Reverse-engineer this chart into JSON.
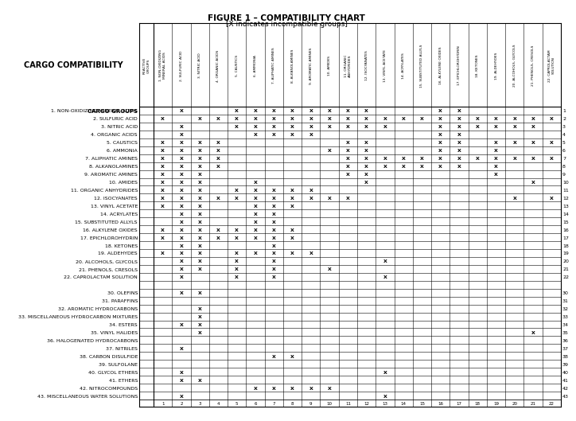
{
  "title_line1": "FIGURE 1 – COMPATIBILITY CHART",
  "title_line2": "[X indicates incompatible groups]",
  "col_header_texts": [
    "REACTIVE\nGROUPS",
    "1. NON-OXIDIZING\nMINERAL ACIDS",
    "2. SULFURIC ACID",
    "3. NITRIC ACID",
    "4. ORGANIC ACIDS",
    "5. CAUSTICS",
    "6. AMMONIA",
    "7. ALIPHATIC AMINES",
    "8. ALKANOLAMINES",
    "9. AROMATIC AMINES",
    "10. AMIDES",
    "11. ORGANIC\nANHYDRIDES",
    "12. ISOCYANATES",
    "13. VINYL ACETATE",
    "14. ACRYLATES",
    "15. SUBSTITUTED ALLYLS",
    "16. ALKYLENE OXIDES",
    "17. EPICHLOROHYDRIN",
    "18. KETONES",
    "19. ALDEHYDES",
    "20. ALCOHOLS, GLYCOLS",
    "21. PHENOLS, CRESOLS",
    "22. CAPROLACTAM\nSOLUTION"
  ],
  "cargo_groups": [
    "1. NON-OXIDIZING MINERAL ACIDS",
    "2. SULFURIC ACID",
    "3. NITRIC ACID",
    "4. ORGANIC ACIDS",
    "5. CAUSTICS",
    "6. AMMONIA",
    "7. ALIPHATIC AMINES",
    "8. ALKANOLAMINES",
    "9. AROMATIC AMINES",
    "10. AMIDES",
    "11. ORGANIC ANHYDRIDES",
    "12. ISOCYANATES",
    "13. VINYL ACETATE",
    "14. ACRYLATES",
    "15. SUBSTITUTED ALLYLS",
    "16. ALKYLENE OXIDES",
    "17. EPICHLOROHYDRIN",
    "18. KETONES",
    "19. ALDEHYDES",
    "20. ALCOHOLS, GLYCOLS",
    "21. PHENOLS, CRESOLS",
    "22. CAPROLACTAM SOLUTION",
    "",
    "30. OLEFINS",
    "31. PARAFFINS",
    "32. AROMATIC HYDROCARBONS",
    "33. MISCELLANEOUS HYDROCARBON MIXTURES",
    "34. ESTERS",
    "35. VINYL HALIDES",
    "36. HALOGENATED HYDROCARBONS",
    "37. NITRILES",
    "38. CARBON DISULFIDE",
    "39. SULFOLANE",
    "40. GLYCOL ETHERS",
    "41. ETHERS",
    "42. NITROCOMPOUNDS",
    "43. MISCELLANEOUS WATER SOLUTIONS"
  ],
  "row_nums": [
    "1",
    "2",
    "3",
    "4",
    "5",
    "6",
    "7",
    "8",
    "9",
    "10",
    "11",
    "12",
    "13",
    "14",
    "15",
    "16",
    "17",
    "18",
    "19",
    "20",
    "21",
    "22",
    "",
    "30",
    "31",
    "32",
    "33",
    "34",
    "35",
    "36",
    "37",
    "38",
    "39",
    "40",
    "41",
    "42",
    "43"
  ],
  "incompatible": {
    "1": [
      2,
      5,
      6,
      7,
      8,
      9,
      10,
      11,
      12,
      16,
      17
    ],
    "2": [
      1,
      3,
      4,
      5,
      6,
      7,
      8,
      9,
      10,
      11,
      12,
      13,
      14,
      15,
      16,
      17,
      18,
      19,
      20,
      21,
      22
    ],
    "3": [
      2,
      5,
      6,
      7,
      8,
      9,
      10,
      11,
      12,
      13,
      16,
      17,
      18,
      19,
      20,
      21
    ],
    "4": [
      2,
      6,
      7,
      8,
      9,
      16,
      17
    ],
    "5": [
      1,
      2,
      3,
      4,
      11,
      12,
      16,
      17,
      19,
      20,
      21,
      22
    ],
    "6": [
      1,
      2,
      3,
      4,
      10,
      11,
      12,
      16,
      17,
      19
    ],
    "7": [
      1,
      2,
      3,
      4,
      11,
      12,
      13,
      14,
      15,
      16,
      17,
      18,
      19,
      20,
      21,
      22
    ],
    "8": [
      1,
      2,
      3,
      4,
      11,
      12,
      13,
      14,
      15,
      16,
      17,
      19
    ],
    "9": [
      1,
      2,
      3,
      11,
      12,
      19
    ],
    "10": [
      1,
      2,
      3,
      6,
      12,
      21
    ],
    "11": [
      1,
      2,
      3,
      5,
      6,
      7,
      8,
      9
    ],
    "12": [
      1,
      2,
      3,
      4,
      5,
      6,
      7,
      8,
      9,
      10,
      11,
      20,
      22
    ],
    "13": [
      1,
      2,
      3,
      6,
      7,
      8
    ],
    "14": [
      2,
      3,
      6,
      7
    ],
    "15": [
      2,
      3,
      6,
      7
    ],
    "16": [
      1,
      2,
      3,
      4,
      5,
      6,
      7,
      8
    ],
    "17": [
      1,
      2,
      3,
      4,
      5,
      6,
      7,
      8
    ],
    "18": [
      2,
      3,
      7
    ],
    "19": [
      1,
      2,
      3,
      5,
      6,
      7,
      8,
      9
    ],
    "20": [
      2,
      3,
      5,
      7,
      13
    ],
    "21": [
      2,
      3,
      5,
      7,
      10
    ],
    "22": [
      2,
      5,
      7,
      13
    ],
    "30": [
      2,
      3
    ],
    "31": [],
    "32": [
      3
    ],
    "33": [
      3
    ],
    "34": [
      2,
      3
    ],
    "35": [
      3,
      21
    ],
    "36": [],
    "37": [
      2
    ],
    "38": [
      7,
      8
    ],
    "39": [],
    "40": [
      2,
      13
    ],
    "41": [
      2,
      3
    ],
    "42": [
      6,
      7,
      8,
      9,
      10
    ],
    "43": [
      2,
      13
    ]
  }
}
